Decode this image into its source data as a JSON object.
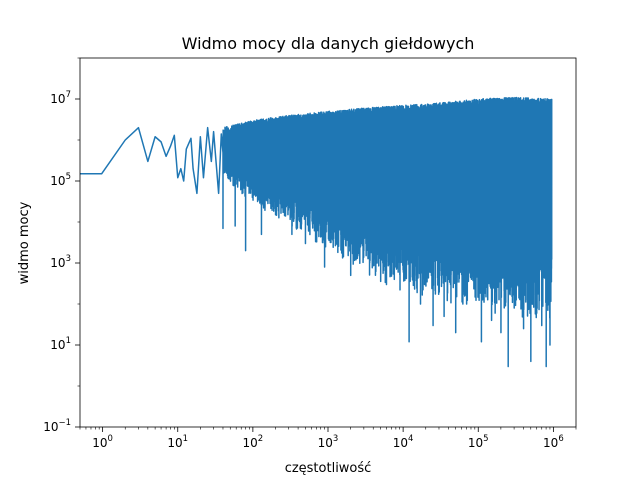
{
  "chart_data": {
    "type": "line",
    "title": "Widmo mocy dla danych giełdowych",
    "xlabel": "częstotliwość",
    "ylabel": "widmo mocy",
    "x_scale": "log",
    "y_scale": "log",
    "xlim": [
      0.5,
      2000000
    ],
    "ylim": [
      0.1,
      100000000
    ],
    "grid": false,
    "x_ticks": [
      {
        "base": "10",
        "exp": "0",
        "value": 1
      },
      {
        "base": "10",
        "exp": "1",
        "value": 10
      },
      {
        "base": "10",
        "exp": "2",
        "value": 100
      },
      {
        "base": "10",
        "exp": "3",
        "value": 1000
      },
      {
        "base": "10",
        "exp": "4",
        "value": 10000
      },
      {
        "base": "10",
        "exp": "5",
        "value": 100000
      },
      {
        "base": "10",
        "exp": "6",
        "value": 1000000
      }
    ],
    "y_ticks": [
      {
        "base": "10",
        "exp": "−1",
        "value": 0.1
      },
      {
        "base": "10",
        "exp": "1",
        "value": 10
      },
      {
        "base": "10",
        "exp": "3",
        "value": 1000
      },
      {
        "base": "10",
        "exp": "5",
        "value": 100000
      },
      {
        "base": "10",
        "exp": "7",
        "value": 10000000
      }
    ],
    "series": [
      {
        "color": "#1f77b4",
        "points": [
          [
            0.5,
            150000
          ],
          [
            0.97,
            150000
          ],
          [
            2.0,
            1000000
          ],
          [
            3.0,
            2000000
          ],
          [
            4.0,
            300000
          ],
          [
            5.0,
            1200000
          ],
          [
            6.0,
            900000
          ],
          [
            7.0,
            400000
          ],
          [
            8.0,
            700000
          ],
          [
            9.0,
            1300000
          ],
          [
            10.0,
            120000
          ],
          [
            11.0,
            200000
          ],
          [
            12.0,
            100000
          ],
          [
            13.0,
            600000
          ],
          [
            15.0,
            1100000
          ],
          [
            16.0,
            200000
          ],
          [
            18.0,
            50000
          ],
          [
            20.0,
            1200000
          ],
          [
            22.0,
            120000
          ],
          [
            25.0,
            2000000
          ],
          [
            28.0,
            300000
          ],
          [
            30.0,
            1600000
          ],
          [
            35.0,
            50000
          ],
          [
            38.0,
            1400000
          ],
          [
            42.0,
            180000
          ]
        ],
        "noise_band": [
          [
            40,
            100000,
            2000000
          ],
          [
            100,
            20000,
            3000000
          ],
          [
            300,
            5000,
            4000000
          ],
          [
            1000,
            1000,
            5000000
          ],
          [
            3000,
            300,
            6000000
          ],
          [
            10000,
            100,
            7000000
          ],
          [
            30000,
            50,
            8000000
          ],
          [
            100000,
            30,
            10000000
          ],
          [
            300000,
            20,
            11000000
          ],
          [
            950000,
            15,
            10000000
          ]
        ],
        "dips": [
          [
            37,
            7000
          ],
          [
            58,
            8000
          ],
          [
            80,
            2000
          ],
          [
            130,
            5000
          ],
          [
            200,
            15000
          ],
          [
            330,
            5000
          ],
          [
            500,
            3000
          ],
          [
            900,
            800
          ],
          [
            1300,
            3000
          ],
          [
            2000,
            500
          ],
          [
            3000,
            2000
          ],
          [
            4500,
            1000
          ],
          [
            6000,
            300
          ],
          [
            8000,
            800
          ],
          [
            12000,
            12
          ],
          [
            17000,
            100
          ],
          [
            25000,
            30
          ],
          [
            35000,
            50
          ],
          [
            50000,
            20
          ],
          [
            70000,
            100
          ],
          [
            110000,
            12
          ],
          [
            150000,
            40
          ],
          [
            200000,
            20
          ],
          [
            250000,
            3
          ],
          [
            300000,
            80
          ],
          [
            400000,
            25
          ],
          [
            500000,
            4
          ],
          [
            600000,
            60
          ],
          [
            700000,
            30
          ],
          [
            800000,
            3
          ],
          [
            900000,
            10
          ]
        ]
      }
    ]
  }
}
